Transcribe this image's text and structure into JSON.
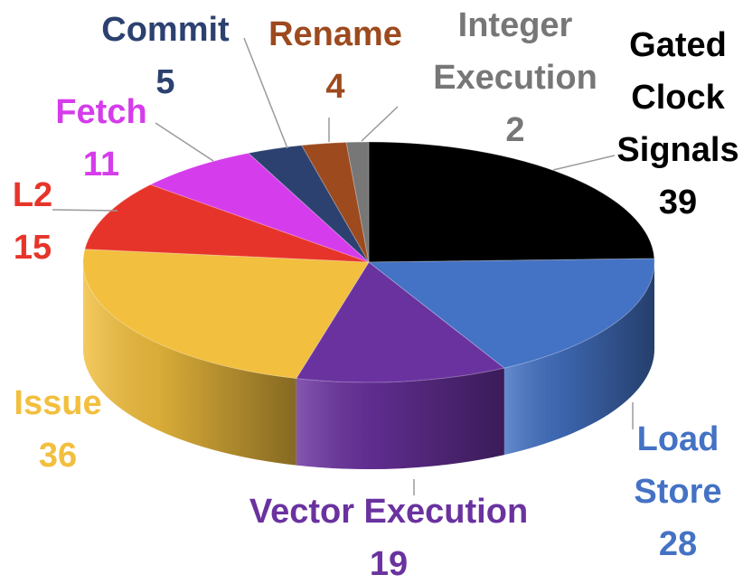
{
  "chart_data": {
    "type": "pie",
    "title": "",
    "slices": [
      {
        "label": "Gated Clock Signals",
        "value": 39,
        "color": "#000000",
        "label_color": "#000000",
        "label_lines": [
          "Gated",
          "Clock",
          "Signals",
          "39"
        ]
      },
      {
        "label": "Load Store",
        "value": 28,
        "color": "#4472C4",
        "label_color": "#4472C4",
        "label_lines": [
          "Load",
          "Store",
          "28"
        ]
      },
      {
        "label": "Vector Execution",
        "value": 19,
        "color": "#6A329F",
        "label_color": "#6A329F",
        "label_lines": [
          "Vector Execution",
          "19"
        ]
      },
      {
        "label": "Issue",
        "value": 36,
        "color": "#F2BF3E",
        "label_color": "#F2BF3E",
        "label_lines": [
          "Issue",
          "36"
        ]
      },
      {
        "label": "L2",
        "value": 15,
        "color": "#E7342A",
        "label_color": "#E7342A",
        "label_lines": [
          "L2",
          "15"
        ]
      },
      {
        "label": "Fetch",
        "value": 11,
        "color": "#D53CEB",
        "label_color": "#D53CEB",
        "label_lines": [
          "Fetch",
          "11"
        ]
      },
      {
        "label": "Commit",
        "value": 5,
        "color": "#2C4170",
        "label_color": "#2C4170",
        "label_lines": [
          "Commit",
          "5"
        ]
      },
      {
        "label": "Rename",
        "value": 4,
        "color": "#9C4A1E",
        "label_color": "#9C4A1E",
        "label_lines": [
          "Rename",
          "4"
        ]
      },
      {
        "label": "Integer Execution",
        "value": 2,
        "color": "#777777",
        "label_color": "#777777",
        "label_lines": [
          "Integer",
          "Execution",
          "2"
        ]
      }
    ]
  }
}
